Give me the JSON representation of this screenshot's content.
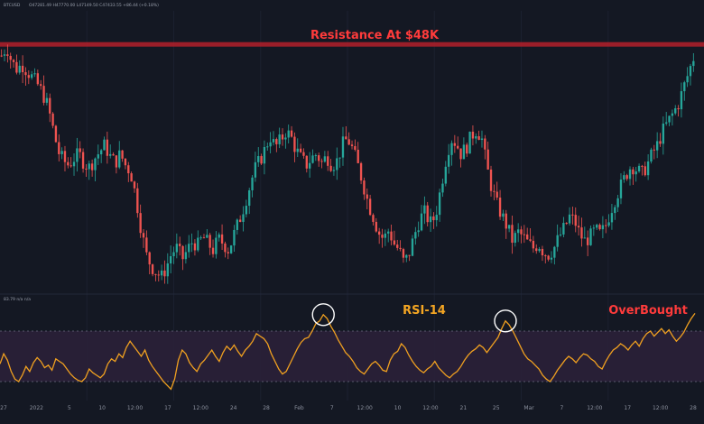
{
  "header": {
    "symbol": "BTCUSD",
    "ohlc": "O47281.49  H47770.00  L47149.50  C47433.55  +86.44 (+0.18%)",
    "rsi_readout": "83.79  n/a  n/a"
  },
  "colors": {
    "background": "#141823",
    "up": "#26a69a",
    "down": "#ef5350",
    "resistance": "#b3202a",
    "rsi_line": "#f0a020",
    "rsi_band": "#2a2038",
    "annotation_red": "#ff3b3b",
    "annotation_orange": "#f5a623"
  },
  "chart_data": [
    {
      "type": "candlestick",
      "resistance": {
        "label": "Resistance At $48K",
        "value": 48000
      },
      "x_ticks": [
        "27",
        "2022",
        "5",
        "10",
        "12:00",
        "17",
        "12:00",
        "24",
        "28",
        "Feb",
        "7",
        "12:00",
        "10",
        "12:00",
        "21",
        "25",
        "Mar",
        "7",
        "12:00",
        "17",
        "12:00",
        "28"
      ],
      "ylim": [
        37000,
        49500
      ],
      "close_path": [
        47500,
        47900,
        47200,
        46900,
        47100,
        46800,
        46500,
        46200,
        45800,
        45200,
        44200,
        43200,
        42800,
        42600,
        42900,
        43100,
        42700,
        42500,
        42900,
        43200,
        43500,
        43000,
        42700,
        43100,
        42600,
        42300,
        41200,
        39800,
        38600,
        38100,
        37800,
        37600,
        38100,
        38700,
        38900,
        38400,
        38800,
        39200,
        39000,
        39400,
        39100,
        38800,
        39300,
        39100,
        38800,
        39500,
        40100,
        40800,
        41600,
        42400,
        42800,
        43300,
        43900,
        43400,
        43700,
        44100,
        43900,
        43300,
        42900,
        42600,
        42900,
        43100,
        42700,
        43000,
        42600,
        42800,
        43500,
        43800,
        43300,
        42600,
        41800,
        40900,
        40300,
        39600,
        39300,
        39700,
        39100,
        38800,
        38200,
        38700,
        39500,
        40200,
        40500,
        40000,
        40300,
        41500,
        42800,
        43800,
        43600,
        43100,
        43400,
        43900,
        44200,
        43800,
        42500,
        41500,
        40800,
        40300,
        39800,
        39200,
        39600,
        39400,
        39100,
        38900,
        39100,
        38700,
        38600,
        38900,
        39400,
        39800,
        40300,
        40100,
        39500,
        39200,
        39400,
        39700,
        39500,
        39900,
        40600,
        41200,
        41700,
        42200,
        42600,
        42400,
        42200,
        42600,
        43100,
        43500,
        44100,
        44500,
        44900,
        45300,
        46000,
        46700,
        47400
      ]
    },
    {
      "type": "line",
      "title": "RSI-14",
      "annotation": "OverBought",
      "ylim": [
        15,
        95
      ],
      "overbought": 70,
      "oversold": 30,
      "values": [
        44,
        52,
        47,
        38,
        32,
        30,
        35,
        42,
        38,
        45,
        49,
        46,
        41,
        43,
        39,
        48,
        46,
        44,
        40,
        36,
        33,
        31,
        30,
        33,
        40,
        37,
        35,
        33,
        36,
        44,
        48,
        46,
        52,
        49,
        57,
        62,
        58,
        54,
        50,
        55,
        47,
        42,
        38,
        34,
        30,
        27,
        24,
        32,
        47,
        55,
        52,
        45,
        41,
        38,
        44,
        47,
        51,
        55,
        50,
        46,
        53,
        58,
        55,
        59,
        54,
        50,
        55,
        58,
        62,
        68,
        66,
        64,
        60,
        52,
        46,
        40,
        36,
        38,
        44,
        50,
        56,
        61,
        64,
        65,
        70,
        76,
        78,
        83,
        80,
        74,
        69,
        63,
        58,
        53,
        50,
        46,
        41,
        38,
        36,
        40,
        44,
        46,
        43,
        39,
        38,
        47,
        52,
        54,
        60,
        57,
        51,
        46,
        42,
        39,
        37,
        40,
        42,
        46,
        41,
        38,
        35,
        33,
        36,
        38,
        42,
        47,
        51,
        54,
        56,
        59,
        57,
        53,
        57,
        61,
        65,
        72,
        78,
        75,
        70,
        64,
        58,
        52,
        48,
        46,
        43,
        40,
        35,
        32,
        30,
        34,
        39,
        43,
        47,
        50,
        48,
        45,
        49,
        52,
        51,
        48,
        46,
        42,
        40,
        46,
        51,
        55,
        57,
        60,
        58,
        55,
        59,
        62,
        58,
        64,
        68,
        70,
        66,
        69,
        72,
        68,
        71,
        66,
        62,
        65,
        69,
        75,
        80,
        84
      ]
    }
  ]
}
